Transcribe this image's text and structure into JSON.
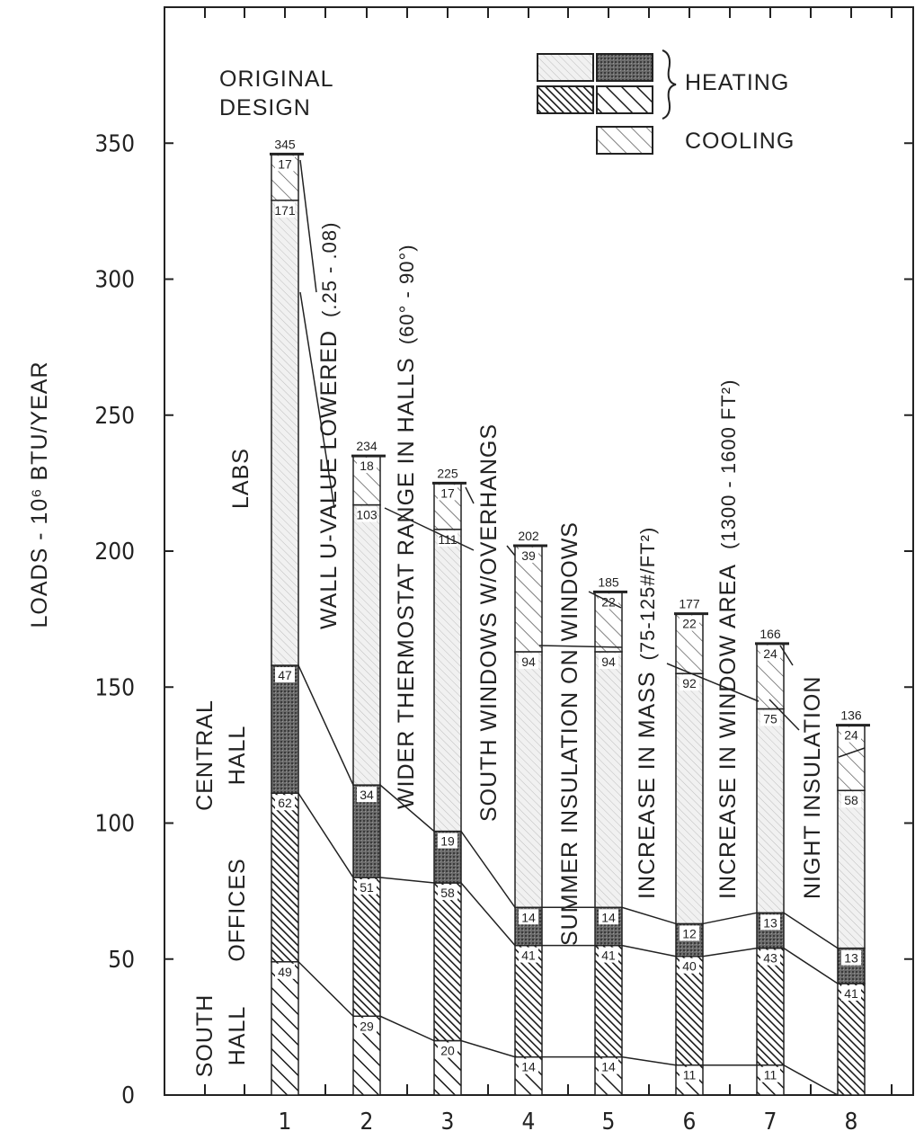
{
  "chart_data": {
    "type": "bar",
    "stacked": true,
    "ylabel": "LOADS - 10⁶ BTU/YEAR",
    "ylim": [
      0,
      400
    ],
    "yticks": [
      0,
      50,
      100,
      150,
      200,
      250,
      300,
      350
    ],
    "categories": [
      "1",
      "2",
      "3",
      "4",
      "5",
      "6",
      "7",
      "8"
    ],
    "totals": [
      345,
      234,
      225,
      202,
      185,
      177,
      166,
      136
    ],
    "series": [
      {
        "name": "SOUTH HALL",
        "values": [
          49,
          29,
          20,
          14,
          14,
          11,
          11,
          null
        ],
        "pattern": "hatch-light"
      },
      {
        "name": "OFFICES",
        "values": [
          62,
          51,
          58,
          41,
          41,
          40,
          43,
          41
        ],
        "pattern": "hatch-dense"
      },
      {
        "name": "CENTRAL HALL",
        "values": [
          47,
          34,
          19,
          14,
          14,
          12,
          13,
          13
        ],
        "pattern": "cross-dense"
      },
      {
        "name": "LABS",
        "values": [
          171,
          103,
          111,
          94,
          94,
          92,
          75,
          58
        ],
        "pattern": "stipple"
      },
      {
        "name": "COOLING",
        "values": [
          17,
          18,
          17,
          39,
          22,
          22,
          24,
          24
        ],
        "pattern": "hatch-open"
      }
    ],
    "series_labels": {
      "south_hall": [
        "SOUTH",
        "HALL"
      ],
      "offices": "OFFICES",
      "central_hall": [
        "CENTRAL",
        "HALL"
      ],
      "labs": "LABS",
      "original_design": [
        "ORIGINAL",
        "DESIGN"
      ]
    },
    "legend": {
      "placement": "top-right",
      "heating_label": "HEATING",
      "cooling_label": "COOLING"
    },
    "annotations": [
      {
        "text": "WALL U-VALUE LOWERED",
        "detail": "(.25 - .08)"
      },
      {
        "text": "WIDER THERMOSTAT RANGE IN HALLS",
        "detail": "(60° - 90°)"
      },
      {
        "text": "SOUTH WINDOWS W/OVERHANGS",
        "detail": ""
      },
      {
        "text": "SUMMER INSULATION ON WINDOWS",
        "detail": ""
      },
      {
        "text": "INCREASE IN MASS",
        "detail": "(75-125#/FT²)"
      },
      {
        "text": "INCREASE IN WINDOW AREA",
        "detail": "(1300 - 1600 FT²)"
      },
      {
        "text": "NIGHT INSULATION",
        "detail": ""
      }
    ]
  }
}
